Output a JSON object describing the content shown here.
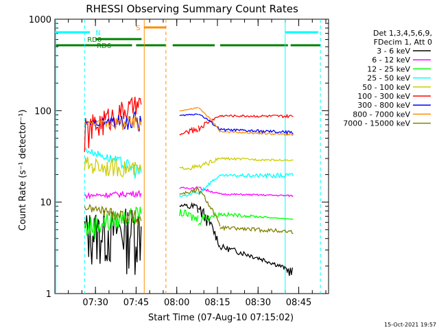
{
  "chart_data": {
    "type": "line",
    "title": "RHESSI Observing Summary Count Rates",
    "xlabel": "Start Time (07-Aug-10 07:15:02)",
    "ylabel": "Count Rate (s⁻¹ detector⁻¹)",
    "y_scale": "log",
    "ylim": [
      1,
      1000
    ],
    "xlim": [
      "07:15:02",
      "08:56"
    ],
    "x_ticks": [
      "07:30",
      "07:45",
      "08:00",
      "08:15",
      "08:30",
      "08:45"
    ],
    "y_ticks": [
      "1",
      "10",
      "100",
      "1000"
    ],
    "footer_date": "15-Oct-2021 19:57",
    "legend_header": [
      "Det 1,3,4,5,6,9,",
      "FDecim 1, Att 0"
    ],
    "flags": {
      "night": {
        "label": "N",
        "color": "#00ffff"
      },
      "saa": {
        "label": "S",
        "color": "#ff8c00"
      },
      "rd0": {
        "label": "RD0",
        "color": "#008000"
      },
      "rd6": {
        "label": "RD6",
        "color": "#008000"
      }
    },
    "series": [
      {
        "name": "3 - 6 keV",
        "color": "#000000",
        "values": [
          [
            "07:26",
            1.8,
            7.8
          ],
          [
            "07:47",
            1.5,
            9.0
          ],
          [
            "08:01",
            9.0,
            9.4
          ],
          [
            "08:08",
            7.0,
            10.2
          ],
          [
            "08:16",
            3.0,
            3.5
          ],
          [
            "08:40",
            1.8,
            2.0
          ],
          [
            "08:43",
            1.3,
            2.0
          ]
        ]
      },
      {
        "name": "6 - 12 keV",
        "color": "#ff00ff",
        "values": [
          [
            "07:26",
            11.0,
            12.5
          ],
          [
            "07:47",
            11.5,
            13.5
          ],
          [
            "08:01",
            14.0,
            14.5
          ],
          [
            "08:08",
            13.8,
            14.8
          ],
          [
            "08:16",
            12.0,
            12.5
          ],
          [
            "08:43",
            11.5,
            12.0
          ]
        ]
      },
      {
        "name": "12 - 25 keV",
        "color": "#00ff00",
        "values": [
          [
            "07:26",
            3.5,
            7.0
          ],
          [
            "07:47",
            6.0,
            9.0
          ],
          [
            "08:01",
            7.0,
            8.5
          ],
          [
            "08:08",
            5.5,
            7.5
          ],
          [
            "08:16",
            7.0,
            7.8
          ],
          [
            "08:43",
            6.5,
            6.5
          ]
        ]
      },
      {
        "name": "25 - 50 keV",
        "color": "#00ffff",
        "values": [
          [
            "07:26",
            35.0,
            40.0
          ],
          [
            "07:47",
            16.0,
            26.0
          ],
          [
            "08:01",
            11.0,
            12.0
          ],
          [
            "08:08",
            11.5,
            13.5
          ],
          [
            "08:16",
            19.0,
            20.0
          ],
          [
            "08:43",
            18.0,
            21.0
          ]
        ]
      },
      {
        "name": "50 - 100 keV",
        "color": "#cccc00",
        "values": [
          [
            "07:26",
            20.0,
            32.0
          ],
          [
            "07:47",
            18.0,
            27.0
          ],
          [
            "08:01",
            23.0,
            24.0
          ],
          [
            "08:08",
            22.0,
            26.0
          ],
          [
            "08:16",
            29.0,
            31.0
          ],
          [
            "08:43",
            28.0,
            29.0
          ]
        ]
      },
      {
        "name": "100 - 300 keV",
        "color": "#ff0000",
        "values": [
          [
            "07:26",
            32.0,
            82.0
          ],
          [
            "07:47",
            90.0,
            150.0
          ],
          [
            "08:01",
            54.0,
            55.0
          ],
          [
            "08:08",
            58.0,
            70.0
          ],
          [
            "08:16",
            86.0,
            90.0
          ],
          [
            "08:43",
            83.0,
            90.0
          ]
        ]
      },
      {
        "name": "300 - 800 keV",
        "color": "#0000ff",
        "values": [
          [
            "07:26",
            72.0,
            74.0
          ],
          [
            "07:47",
            56.0,
            100.0
          ],
          [
            "08:01",
            87.0,
            89.0
          ],
          [
            "08:08",
            90.0,
            95.0
          ],
          [
            "08:16",
            60.0,
            64.0
          ],
          [
            "08:43",
            55.0,
            60.0
          ]
        ]
      },
      {
        "name": "800 - 7000 keV",
        "color": "#ff8c00",
        "values": [
          [
            "07:26",
            72.0,
            75.0
          ],
          [
            "07:47",
            54.0,
            90.0
          ],
          [
            "08:01",
            99.0,
            100.0
          ],
          [
            "08:08",
            105.0,
            110.0
          ],
          [
            "08:16",
            58.0,
            60.0
          ],
          [
            "08:43",
            53.0,
            56.0
          ]
        ]
      },
      {
        "name": "7000 - 15000 keV",
        "color": "#808000",
        "values": [
          [
            "07:26",
            8.0,
            9.5
          ],
          [
            "07:47",
            5.0,
            8.0
          ],
          [
            "08:01",
            12.0,
            12.5
          ],
          [
            "08:08",
            12.5,
            14.5
          ],
          [
            "08:16",
            5.0,
            5.5
          ],
          [
            "08:43",
            4.5,
            5.0
          ]
        ]
      }
    ]
  }
}
